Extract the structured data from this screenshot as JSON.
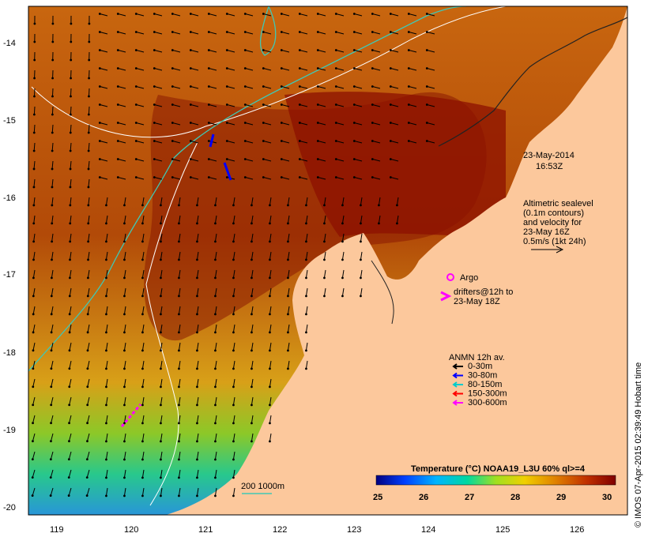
{
  "map": {
    "date": "23-May-2014",
    "time": "16:53Z",
    "altimetry_text": [
      "Altimetric sealevel",
      "(0.1m contours)",
      "and velocity for",
      "23-May 16Z",
      "0.5m/s (1kt 24h)"
    ],
    "argo_label": "Argo",
    "drifters_text": [
      "drifters@12h to",
      "23-May 18Z"
    ],
    "anmn": {
      "title": "ANMN 12h av.",
      "items": [
        {
          "label": "0-30m",
          "color": "#000000"
        },
        {
          "label": "30-80m",
          "color": "#0000ff"
        },
        {
          "label": "80-150m",
          "color": "#00cccc"
        },
        {
          "label": "150-300m",
          "color": "#ff0000"
        },
        {
          "label": "300-600m",
          "color": "#ff00ff"
        }
      ]
    },
    "isobath_label": "200  1000m",
    "credit": "© IMOS 07-Apr-2015 02:39:49 Hobart time",
    "colorbar": {
      "title": "Temperature (°C) NOAA19_L3U 60% ql>=4",
      "ticks": [
        "25",
        "26",
        "27",
        "28",
        "29",
        "30"
      ]
    },
    "lat_labels": [
      "-14",
      "-15",
      "-16",
      "-17",
      "-18",
      "-19",
      "-20"
    ],
    "lon_labels": [
      "119",
      "120",
      "121",
      "122",
      "123",
      "124",
      "125",
      "126"
    ],
    "colors": {
      "land": "#fcc89c",
      "sst_hot": "#8c1400",
      "sst_mid": "#c86410",
      "argo": "#ff00ff",
      "isobath_200": "#ffffff",
      "isobath_1000": "#40c8b4"
    }
  }
}
